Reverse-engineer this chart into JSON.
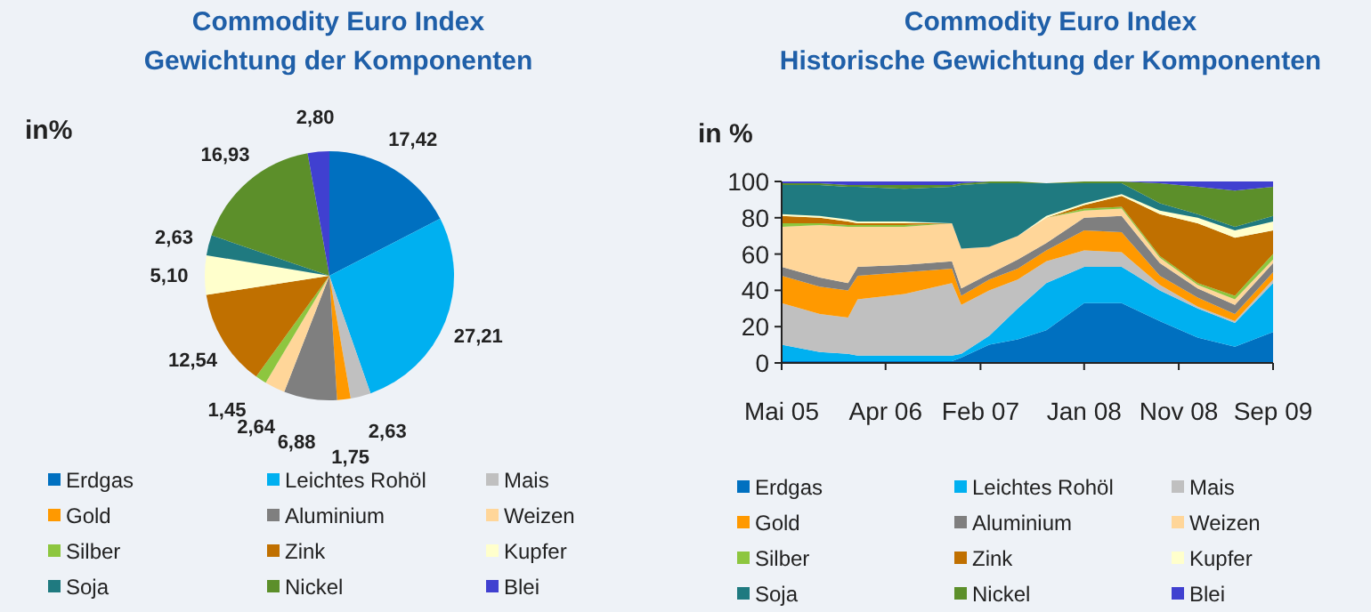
{
  "chart_data": [
    {
      "type": "pie",
      "title": "Commodity Euro Index",
      "subtitle": "Gewichtung der Komponenten",
      "annotations": [
        "in%"
      ],
      "categories": [
        "Erdgas",
        "Leichtes Rohöl",
        "Mais",
        "Gold",
        "Aluminium",
        "Weizen",
        "Silber",
        "Zink",
        "Kupfer",
        "Soja",
        "Nickel",
        "Blei"
      ],
      "values": [
        17.42,
        27.21,
        2.63,
        1.75,
        6.88,
        2.64,
        1.45,
        12.54,
        5.1,
        2.63,
        16.93,
        2.8
      ],
      "value_labels": [
        "17,42",
        "27,21",
        "2,63",
        "1,75",
        "6,88",
        "2,64",
        "1,45",
        "12,54",
        "5,10",
        "2,63",
        "16,93",
        "2,80"
      ],
      "colors": [
        "#0070c0",
        "#00b0f0",
        "#c0c0c0",
        "#ff9900",
        "#7f7f7f",
        "#ffd699",
        "#8dc63f",
        "#c07000",
        "#ffffcc",
        "#1f7a80",
        "#5c8f2a",
        "#4040d0"
      ],
      "legend": "bottom"
    },
    {
      "type": "area",
      "stacked": true,
      "title": "Commodity Euro Index",
      "subtitle": "Historische Gewichtung der Komponenten",
      "ylabel": "in %",
      "x": [
        "2005-05",
        "2005-09",
        "2005-12",
        "2006-01",
        "2006-06",
        "2006-11",
        "2006-12",
        "2007-03",
        "2007-06",
        "2007-09",
        "2008-01",
        "2008-05",
        "2008-09",
        "2009-01",
        "2009-05",
        "2009-09"
      ],
      "xlim": [
        "2005-05",
        "2009-09"
      ],
      "xticks": [
        {
          "value": "2005-05",
          "label": "Mai 05"
        },
        {
          "value": "2006-04",
          "label": "Apr 06"
        },
        {
          "value": "2007-02",
          "label": "Feb 07"
        },
        {
          "value": "2008-01",
          "label": "Jan 08"
        },
        {
          "value": "2008-11",
          "label": "Nov 08"
        },
        {
          "value": "2009-09",
          "label": "Sep 09"
        }
      ],
      "ylim": [
        0,
        100
      ],
      "yticks": [
        0,
        20,
        40,
        60,
        80,
        100
      ],
      "legend": "bottom",
      "series": [
        {
          "name": "Erdgas",
          "color": "#0070c0",
          "values": [
            1,
            1,
            1,
            1,
            1,
            1,
            3,
            10,
            13,
            18,
            33,
            33,
            23,
            14,
            9,
            17
          ]
        },
        {
          "name": "Leichtes Rohöl",
          "color": "#00b0f0",
          "values": [
            9,
            5,
            4,
            3,
            3,
            3,
            2,
            5,
            17,
            26,
            20,
            20,
            17,
            16,
            13,
            27
          ]
        },
        {
          "name": "Mais",
          "color": "#c0c0c0",
          "values": [
            23,
            21,
            20,
            31,
            34,
            40,
            27,
            25,
            16,
            12,
            9,
            8,
            3,
            1,
            1,
            2
          ]
        },
        {
          "name": "Gold",
          "color": "#ff9900",
          "values": [
            15,
            15,
            15,
            13,
            12,
            8,
            5,
            6,
            6,
            6,
            11,
            11,
            5,
            5,
            4,
            4
          ]
        },
        {
          "name": "Aluminium",
          "color": "#7f7f7f",
          "values": [
            5,
            5,
            4,
            5,
            4,
            4,
            4,
            3,
            5,
            4,
            7,
            9,
            7,
            5,
            5,
            5
          ]
        },
        {
          "name": "Weizen",
          "color": "#ffd699",
          "values": [
            22,
            29,
            31,
            22,
            21,
            21,
            22,
            15,
            13,
            14,
            4,
            4,
            3,
            2,
            3,
            2
          ]
        },
        {
          "name": "Silber",
          "color": "#8dc63f",
          "values": [
            2,
            1,
            1,
            1,
            1,
            0,
            0,
            0,
            0,
            0,
            1,
            1,
            1,
            1,
            2,
            3
          ]
        },
        {
          "name": "Zink",
          "color": "#c07000",
          "values": [
            4,
            3,
            2,
            1,
            1,
            0,
            0,
            0,
            0,
            0,
            2,
            6,
            23,
            33,
            32,
            13
          ]
        },
        {
          "name": "Kupfer",
          "color": "#ffffcc",
          "values": [
            1,
            1,
            1,
            1,
            1,
            0,
            0,
            0,
            0,
            1,
            1,
            1,
            2,
            3,
            4,
            5
          ]
        },
        {
          "name": "Soja",
          "color": "#1f7a80",
          "values": [
            16,
            17,
            18,
            19,
            18,
            20,
            35,
            35,
            29,
            18,
            11,
            6,
            4,
            2,
            2,
            3
          ]
        },
        {
          "name": "Nickel",
          "color": "#5c8f2a",
          "values": [
            1,
            1,
            1,
            1,
            2,
            1,
            1,
            1,
            1,
            0,
            1,
            1,
            11,
            15,
            20,
            16
          ]
        },
        {
          "name": "Blei",
          "color": "#4040d0",
          "values": [
            1,
            1,
            2,
            2,
            2,
            2,
            1,
            0,
            0,
            0,
            0,
            0,
            1,
            3,
            5,
            3
          ]
        }
      ]
    }
  ]
}
